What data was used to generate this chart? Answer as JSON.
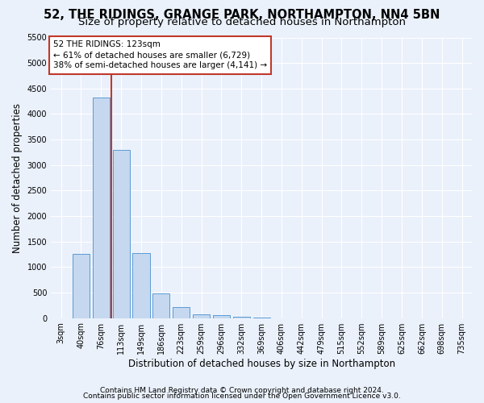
{
  "title_line1": "52, THE RIDINGS, GRANGE PARK, NORTHAMPTON, NN4 5BN",
  "title_line2": "Size of property relative to detached houses in Northampton",
  "xlabel": "Distribution of detached houses by size in Northampton",
  "ylabel": "Number of detached properties",
  "footnote1": "Contains HM Land Registry data © Crown copyright and database right 2024.",
  "footnote2": "Contains public sector information licensed under the Open Government Licence v3.0.",
  "bar_labels": [
    "3sqm",
    "40sqm",
    "76sqm",
    "113sqm",
    "149sqm",
    "186sqm",
    "223sqm",
    "259sqm",
    "296sqm",
    "332sqm",
    "369sqm",
    "406sqm",
    "442sqm",
    "479sqm",
    "515sqm",
    "552sqm",
    "589sqm",
    "625sqm",
    "662sqm",
    "698sqm",
    "735sqm"
  ],
  "bar_values": [
    0,
    1260,
    4330,
    3290,
    1270,
    480,
    215,
    75,
    50,
    30,
    10,
    0,
    0,
    0,
    0,
    0,
    0,
    0,
    0,
    0,
    0
  ],
  "bar_color": "#c5d8f0",
  "bar_edge_color": "#5b9bd5",
  "vline_color": "#c0392b",
  "vline_x_index": 2,
  "annotation_line1": "52 THE RIDINGS: 123sqm",
  "annotation_line2": "← 61% of detached houses are smaller (6,729)",
  "annotation_line3": "38% of semi-detached houses are larger (4,141) →",
  "annotation_box_color": "#ffffff",
  "annotation_box_edge": "#c0392b",
  "ylim": [
    0,
    5500
  ],
  "yticks": [
    0,
    500,
    1000,
    1500,
    2000,
    2500,
    3000,
    3500,
    4000,
    4500,
    5000,
    5500
  ],
  "bg_color": "#eaf1fb",
  "plot_bg_color": "#eaf1fb",
  "grid_color": "#ffffff",
  "title_fontsize": 10.5,
  "subtitle_fontsize": 9.5,
  "axis_label_fontsize": 8.5,
  "tick_fontsize": 7,
  "annotation_fontsize": 7.5,
  "footnote_fontsize": 6.5
}
